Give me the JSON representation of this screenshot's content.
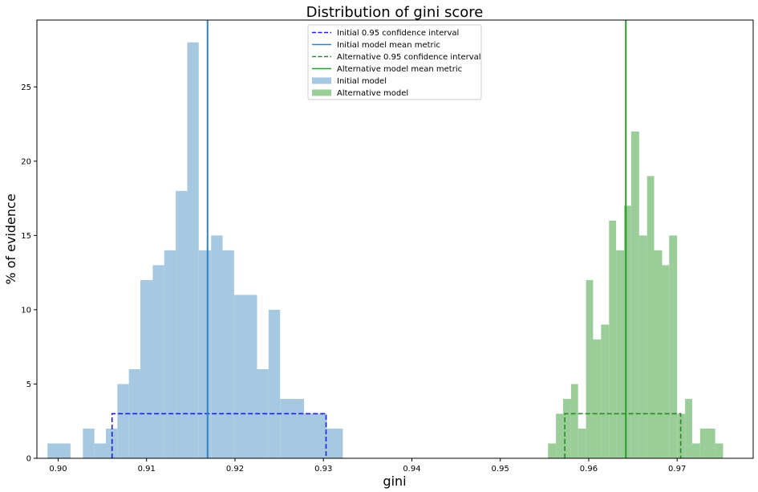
{
  "chart_data": {
    "type": "histogram",
    "title": "Distribution of gini score",
    "xlabel": "gini",
    "ylabel": "% of evidence",
    "xlim": [
      0.8976,
      0.9786
    ],
    "ylim": [
      0,
      29.5
    ],
    "xticks": [
      "0.90",
      "0.91",
      "0.92",
      "0.93",
      "0.94",
      "0.95",
      "0.96",
      "0.97"
    ],
    "yticks": [
      "0",
      "5",
      "10",
      "15",
      "20",
      "25"
    ],
    "grid": false,
    "legend_placement": "upper center",
    "colors": {
      "initial_fill": "#a6c8e0",
      "initial_line": "#2f83c3",
      "initial_ci": "#1f1fe0",
      "alternative_fill": "#9acd98",
      "alternative_line": "#2a9a2a",
      "alternative_ci": "#2a8a2a"
    },
    "series": [
      {
        "name": "Initial model",
        "color": "#a6c8e0",
        "bins": [
          [
            0.8988,
            0.9014,
            1
          ],
          [
            0.9028,
            0.9041,
            2
          ],
          [
            0.9041,
            0.9054,
            1
          ],
          [
            0.9054,
            0.9067,
            2
          ],
          [
            0.9067,
            0.908,
            5
          ],
          [
            0.908,
            0.9093,
            6
          ],
          [
            0.9093,
            0.9107,
            12
          ],
          [
            0.9107,
            0.912,
            13
          ],
          [
            0.912,
            0.9133,
            14
          ],
          [
            0.9133,
            0.9146,
            18
          ],
          [
            0.9146,
            0.9159,
            28
          ],
          [
            0.9159,
            0.9173,
            14
          ],
          [
            0.9173,
            0.9186,
            15
          ],
          [
            0.9186,
            0.9199,
            14
          ],
          [
            0.9199,
            0.9225,
            11
          ],
          [
            0.9225,
            0.9238,
            6
          ],
          [
            0.9238,
            0.9251,
            10
          ],
          [
            0.9251,
            0.9278,
            4
          ],
          [
            0.9278,
            0.9304,
            3
          ],
          [
            0.9304,
            0.9322,
            2
          ]
        ]
      },
      {
        "name": "Alternative model",
        "color": "#9acd98",
        "bins": [
          [
            0.9554,
            0.9563,
            1
          ],
          [
            0.9563,
            0.9571,
            3
          ],
          [
            0.9571,
            0.958,
            4
          ],
          [
            0.958,
            0.9588,
            5
          ],
          [
            0.9588,
            0.9597,
            2
          ],
          [
            0.9597,
            0.9605,
            12
          ],
          [
            0.9605,
            0.9614,
            8
          ],
          [
            0.9614,
            0.9623,
            9
          ],
          [
            0.9623,
            0.9631,
            16
          ],
          [
            0.9631,
            0.964,
            14
          ],
          [
            0.964,
            0.9648,
            17
          ],
          [
            0.9648,
            0.9657,
            22
          ],
          [
            0.9657,
            0.9666,
            15
          ],
          [
            0.9666,
            0.9674,
            19
          ],
          [
            0.9674,
            0.9683,
            14
          ],
          [
            0.9683,
            0.9691,
            13
          ],
          [
            0.9691,
            0.97,
            15
          ],
          [
            0.97,
            0.9709,
            3
          ],
          [
            0.9709,
            0.9717,
            4
          ],
          [
            0.9717,
            0.9726,
            1
          ],
          [
            0.9726,
            0.9743,
            2
          ],
          [
            0.9743,
            0.9752,
            1
          ]
        ]
      }
    ],
    "lines": [
      {
        "name": "Initial 0.95 confidence interval",
        "style": "dashed",
        "color": "#1f1fe0",
        "x_low": 0.9061,
        "x_high": 0.9303,
        "y": 3
      },
      {
        "name": "Initial model mean metric",
        "style": "solid",
        "color": "#2f83c3",
        "x": 0.9169
      },
      {
        "name": "Alternative 0.95 confidence interval",
        "style": "dashed",
        "color": "#2a8a2a",
        "x_low": 0.9573,
        "x_high": 0.9704,
        "y": 3
      },
      {
        "name": "Alternative model mean metric",
        "style": "solid",
        "color": "#2a9a2a",
        "x": 0.9642
      }
    ],
    "legend": [
      {
        "label": "Initial 0.95 confidence interval",
        "kind": "dashed",
        "color": "#1f1fe0"
      },
      {
        "label": "Initial model mean metric",
        "kind": "solid",
        "color": "#2f83c3"
      },
      {
        "label": "Alternative 0.95 confidence interval",
        "kind": "dashed",
        "color": "#2a8a2a"
      },
      {
        "label": "Alternative model mean metric",
        "kind": "solid",
        "color": "#2a9a2a"
      },
      {
        "label": "Initial model",
        "kind": "patch",
        "color": "#a6c8e0"
      },
      {
        "label": "Alternative model",
        "kind": "patch",
        "color": "#9acd98"
      }
    ]
  }
}
